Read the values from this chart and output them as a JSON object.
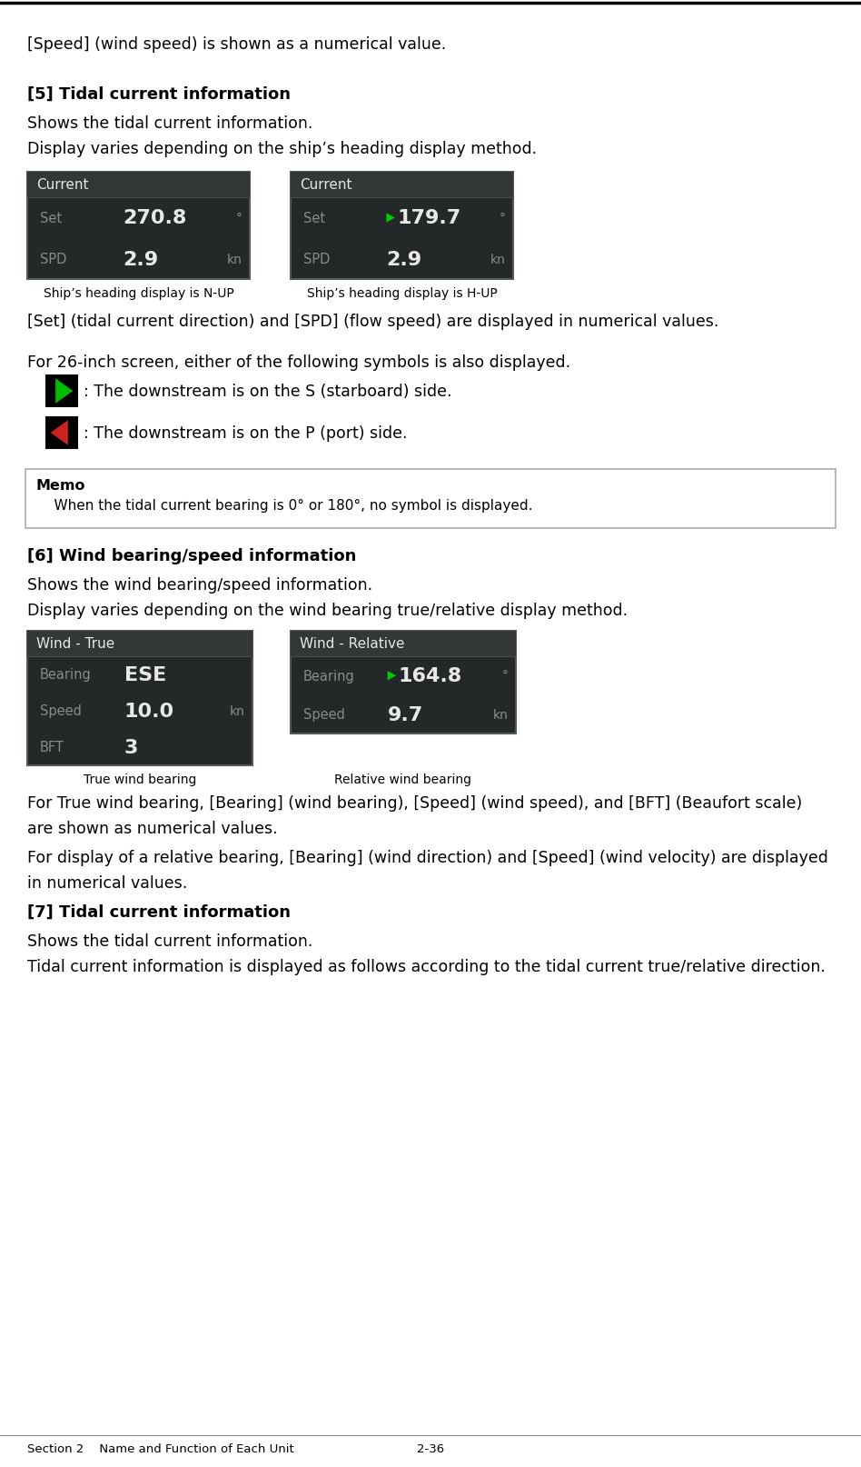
{
  "bg_color": "#ffffff",
  "text_color": "#000000",
  "font_family": "DejaVu Sans",
  "line1": "[Speed] (wind speed) is shown as a numerical value.",
  "section5_title": "[5] Tidal current information",
  "section5_line1": "Shows the tidal current information.",
  "section5_line2": "Display varies depending on the ship’s heading display method.",
  "box1_title": "Current",
  "box1_row1_label": "Set",
  "box1_row1_value": "270.8",
  "box1_row1_unit": "°",
  "box1_row2_label": "SPD",
  "box1_row2_value": "2.9",
  "box1_row2_unit": "kn",
  "box1_caption": "Ship’s heading display is N-UP",
  "box2_title": "Current",
  "box2_row1_label": "Set",
  "box2_row1_value": "179.7",
  "box2_row1_unit": "°",
  "box2_row1_arrow_color": "#00cc00",
  "box2_row2_label": "SPD",
  "box2_row2_value": "2.9",
  "box2_row2_unit": "kn",
  "box2_caption": "Ship’s heading display is H-UP",
  "set_spd_text": "[Set] (tidal current direction) and [SPD] (flow speed) are displayed in numerical values.",
  "for26_text": "For 26-inch screen, either of the following symbols is also displayed.",
  "sym1_text": ": The downstream is on the S (starboard) side.",
  "sym2_text": ": The downstream is on the P (port) side.",
  "memo_title": "Memo",
  "memo_text": "    When the tidal current bearing is 0° or 180°, no symbol is displayed.",
  "section6_title": "[6] Wind bearing/speed information",
  "section6_line1": "Shows the wind bearing/speed information.",
  "section6_line2": "Display varies depending on the wind bearing true/relative display method.",
  "wind_box1_title": "Wind - True",
  "wind_box1_row1_label": "Bearing",
  "wind_box1_row1_value": "ESE",
  "wind_box1_row2_label": "Speed",
  "wind_box1_row2_value": "10.0",
  "wind_box1_row2_unit": "kn",
  "wind_box1_row3_label": "BFT",
  "wind_box1_row3_value": "3",
  "wind_box1_caption": "True wind bearing",
  "wind_box2_title": "Wind - Relative",
  "wind_box2_row1_label": "Bearing",
  "wind_box2_row1_value": "164.8",
  "wind_box2_row1_unit": "°",
  "wind_box2_row1_arrow_color": "#00cc00",
  "wind_box2_row2_label": "Speed",
  "wind_box2_row2_value": "9.7",
  "wind_box2_row2_unit": "kn",
  "wind_box2_caption": "Relative wind bearing",
  "true_wind_text1": "For True wind bearing, [Bearing] (wind bearing), [Speed] (wind speed), and [BFT] (Beaufort scale)",
  "true_wind_text2": "are shown as numerical values.",
  "relative_wind_text1": "For display of a relative bearing, [Bearing] (wind direction) and [Speed] (wind velocity) are displayed",
  "relative_wind_text2": "in numerical values.",
  "section7_title": "[7] Tidal current information",
  "section7_line1": "Shows the tidal current information.",
  "section7_line2": "Tidal current information is displayed as follows according to the tidal current true/relative direction.",
  "footer_left": "Section 2    Name and Function of Each Unit",
  "footer_right": "2-36",
  "dark_bg": "#252828",
  "dark_title_bg": "#333737",
  "dark_sep": "#4a4d4d",
  "dark_text_dim": "#8a8a8a",
  "dark_text_bright": "#e8e8e8",
  "arrow_col_green": "#00bb00",
  "arrow_col_red": "#cc2222"
}
